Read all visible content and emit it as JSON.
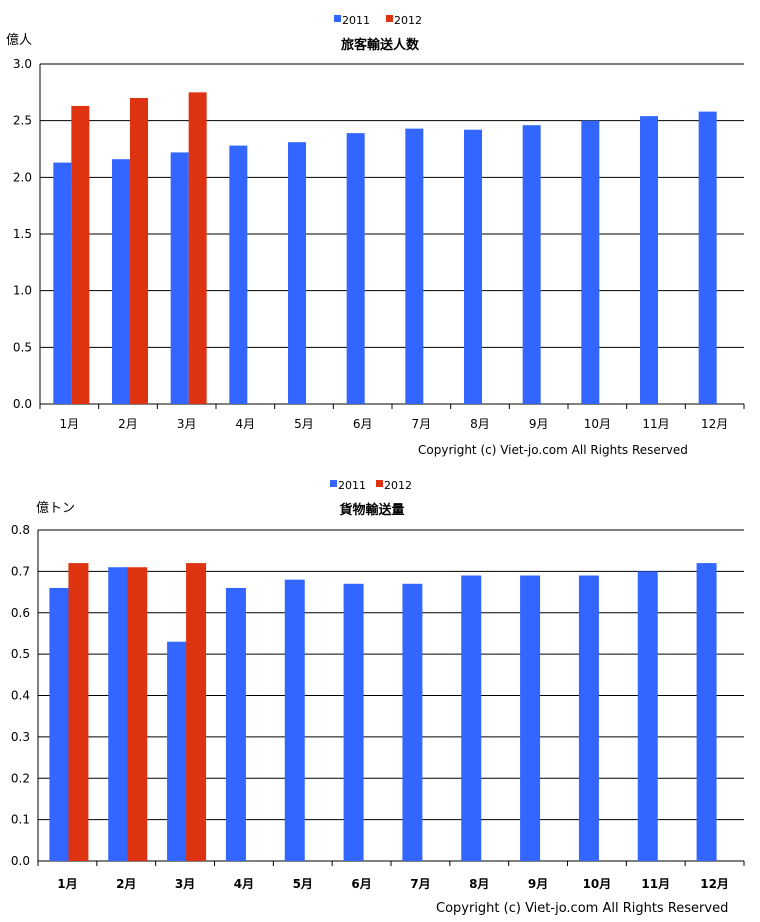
{
  "chart_data": [
    {
      "type": "bar",
      "title": "旅客輸送人数",
      "ylabel": "億人",
      "copyright": "Copyright (c) Viet-jo.com All Rights Reserved",
      "categories": [
        "1月",
        "2月",
        "3月",
        "4月",
        "5月",
        "6月",
        "7月",
        "8月",
        "9月",
        "10月",
        "11月",
        "12月"
      ],
      "ylim": [
        0,
        3.0
      ],
      "yticks": [
        "0.0",
        "0.5",
        "1.0",
        "1.5",
        "2.0",
        "2.5",
        "3.0"
      ],
      "grid": true,
      "legend_position": "top",
      "series": [
        {
          "name": "2011",
          "color": "#3366ff",
          "values": [
            2.13,
            2.16,
            2.22,
            2.28,
            2.31,
            2.39,
            2.43,
            2.42,
            2.46,
            2.5,
            2.54,
            2.58
          ]
        },
        {
          "name": "2012",
          "color": "#dd3311",
          "values": [
            2.63,
            2.7,
            2.75,
            null,
            null,
            null,
            null,
            null,
            null,
            null,
            null,
            null
          ]
        }
      ]
    },
    {
      "type": "bar",
      "title": "貨物輸送量",
      "ylabel": "億トン",
      "copyright": "Copyright (c) Viet-jo.com All Rights Reserved",
      "categories": [
        "1月",
        "2月",
        "3月",
        "4月",
        "5月",
        "6月",
        "7月",
        "8月",
        "9月",
        "10月",
        "11月",
        "12月"
      ],
      "ylim": [
        0,
        0.8
      ],
      "yticks": [
        "0.0",
        "0.1",
        "0.2",
        "0.3",
        "0.4",
        "0.5",
        "0.6",
        "0.7",
        "0.8"
      ],
      "grid": true,
      "legend_position": "top",
      "series": [
        {
          "name": "2011",
          "color": "#3366ff",
          "values": [
            0.66,
            0.71,
            0.53,
            0.66,
            0.68,
            0.67,
            0.67,
            0.69,
            0.69,
            0.69,
            0.7,
            0.72
          ]
        },
        {
          "name": "2012",
          "color": "#dd3311",
          "values": [
            0.72,
            0.71,
            0.72,
            null,
            null,
            null,
            null,
            null,
            null,
            null,
            null,
            null
          ]
        }
      ]
    }
  ]
}
